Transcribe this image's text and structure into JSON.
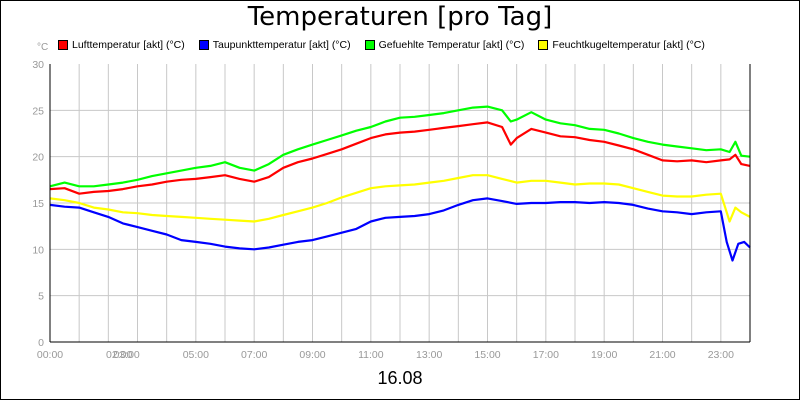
{
  "title": "Temperaturen [pro Tag]",
  "unit_label": "°C",
  "date_label": "16.08",
  "chart_data": {
    "type": "line",
    "title": "Temperaturen [pro Tag]",
    "xlabel": "16.08",
    "ylabel": "°C",
    "x_range": [
      0,
      24
    ],
    "ylim": [
      0,
      30
    ],
    "y_ticks": [
      0,
      5,
      10,
      15,
      20,
      25,
      30
    ],
    "x_tick_labels": [
      {
        "x": 0,
        "label": "00:00"
      },
      {
        "x": 2,
        "label": "02:00"
      },
      {
        "x": 3,
        "label": "03:00"
      },
      {
        "x": 5,
        "label": "05:00"
      },
      {
        "x": 7,
        "label": "07:00"
      },
      {
        "x": 9,
        "label": "09:00"
      },
      {
        "x": 11,
        "label": "11:00"
      },
      {
        "x": 13,
        "label": "13:00"
      },
      {
        "x": 15,
        "label": "15:00"
      },
      {
        "x": 17,
        "label": "17:00"
      },
      {
        "x": 19,
        "label": "19:00"
      },
      {
        "x": 21,
        "label": "21:00"
      },
      {
        "x": 23,
        "label": "23:00"
      }
    ],
    "grid": true,
    "legend_position": "top",
    "series": [
      {
        "name": "Lufttemperatur [akt] (°C)",
        "color": "#ff0000",
        "x": [
          0,
          0.5,
          1,
          1.5,
          2,
          2.5,
          3,
          3.5,
          4,
          4.5,
          5,
          5.5,
          6,
          6.5,
          7,
          7.5,
          8,
          8.5,
          9,
          9.5,
          10,
          10.5,
          11,
          11.5,
          12,
          12.5,
          13,
          13.5,
          14,
          14.5,
          15,
          15.5,
          15.8,
          16,
          16.5,
          17,
          17.5,
          18,
          18.5,
          19,
          19.5,
          20,
          20.5,
          21,
          21.5,
          22,
          22.5,
          23,
          23.3,
          23.5,
          23.7,
          24
        ],
        "y": [
          16.5,
          16.6,
          16.0,
          16.2,
          16.3,
          16.5,
          16.8,
          17.0,
          17.3,
          17.5,
          17.6,
          17.8,
          18.0,
          17.6,
          17.3,
          17.8,
          18.8,
          19.4,
          19.8,
          20.3,
          20.8,
          21.4,
          22.0,
          22.4,
          22.6,
          22.7,
          22.9,
          23.1,
          23.3,
          23.5,
          23.7,
          23.2,
          21.3,
          22.0,
          23.0,
          22.6,
          22.2,
          22.1,
          21.8,
          21.6,
          21.2,
          20.8,
          20.2,
          19.6,
          19.5,
          19.6,
          19.4,
          19.6,
          19.7,
          20.2,
          19.2,
          19.0
        ]
      },
      {
        "name": "Taupunkttemperatur [akt] (°C)",
        "color": "#0000ff",
        "x": [
          0,
          0.5,
          1,
          1.5,
          2,
          2.5,
          3,
          3.5,
          4,
          4.5,
          5,
          5.5,
          6,
          6.5,
          7,
          7.5,
          8,
          8.5,
          9,
          9.5,
          10,
          10.5,
          11,
          11.5,
          12,
          12.5,
          13,
          13.5,
          14,
          14.5,
          15,
          15.5,
          16,
          16.5,
          17,
          17.5,
          18,
          18.5,
          19,
          19.5,
          20,
          20.5,
          21,
          21.5,
          22,
          22.5,
          23,
          23.2,
          23.4,
          23.6,
          23.8,
          24
        ],
        "y": [
          14.8,
          14.6,
          14.5,
          14.0,
          13.5,
          12.8,
          12.4,
          12.0,
          11.6,
          11.0,
          10.8,
          10.6,
          10.3,
          10.1,
          10.0,
          10.2,
          10.5,
          10.8,
          11.0,
          11.4,
          11.8,
          12.2,
          13.0,
          13.4,
          13.5,
          13.6,
          13.8,
          14.2,
          14.8,
          15.3,
          15.5,
          15.2,
          14.9,
          15.0,
          15.0,
          15.1,
          15.1,
          15.0,
          15.1,
          15.0,
          14.8,
          14.4,
          14.1,
          14.0,
          13.8,
          14.0,
          14.1,
          10.8,
          8.8,
          10.6,
          10.8,
          10.2
        ]
      },
      {
        "name": "Gefuehlte Temperatur [akt] (°C)",
        "color": "#00ff00",
        "x": [
          0,
          0.5,
          1,
          1.5,
          2,
          2.5,
          3,
          3.5,
          4,
          4.5,
          5,
          5.5,
          6,
          6.5,
          7,
          7.5,
          8,
          8.5,
          9,
          9.5,
          10,
          10.5,
          11,
          11.5,
          12,
          12.5,
          13,
          13.5,
          14,
          14.5,
          15,
          15.5,
          15.8,
          16,
          16.5,
          17,
          17.5,
          18,
          18.5,
          19,
          19.5,
          20,
          20.5,
          21,
          21.5,
          22,
          22.5,
          23,
          23.3,
          23.5,
          23.7,
          24
        ],
        "y": [
          16.8,
          17.2,
          16.8,
          16.8,
          17.0,
          17.2,
          17.5,
          17.9,
          18.2,
          18.5,
          18.8,
          19.0,
          19.4,
          18.8,
          18.5,
          19.2,
          20.2,
          20.8,
          21.3,
          21.8,
          22.3,
          22.8,
          23.2,
          23.8,
          24.2,
          24.3,
          24.5,
          24.7,
          25.0,
          25.3,
          25.4,
          25.0,
          23.8,
          24.0,
          24.8,
          24.0,
          23.6,
          23.4,
          23.0,
          22.9,
          22.5,
          22.0,
          21.6,
          21.3,
          21.1,
          20.9,
          20.7,
          20.8,
          20.5,
          21.6,
          20.1,
          20.0
        ]
      },
      {
        "name": "Feuchtkugeltemperatur [akt] (°C)",
        "color": "#ffff00",
        "x": [
          0,
          0.5,
          1,
          1.5,
          2,
          2.5,
          3,
          3.5,
          4,
          4.5,
          5,
          5.5,
          6,
          6.5,
          7,
          7.5,
          8,
          8.5,
          9,
          9.5,
          10,
          10.5,
          11,
          11.5,
          12,
          12.5,
          13,
          13.5,
          14,
          14.5,
          15,
          15.5,
          16,
          16.5,
          17,
          17.5,
          18,
          18.5,
          19,
          19.5,
          20,
          20.5,
          21,
          21.5,
          22,
          22.5,
          23,
          23.3,
          23.5,
          23.7,
          24
        ],
        "y": [
          15.5,
          15.3,
          15.0,
          14.5,
          14.3,
          14.0,
          13.9,
          13.7,
          13.6,
          13.5,
          13.4,
          13.3,
          13.2,
          13.1,
          13.0,
          13.3,
          13.7,
          14.1,
          14.5,
          15.0,
          15.6,
          16.1,
          16.6,
          16.8,
          16.9,
          17.0,
          17.2,
          17.4,
          17.7,
          18.0,
          18.0,
          17.6,
          17.2,
          17.4,
          17.4,
          17.2,
          17.0,
          17.1,
          17.1,
          17.0,
          16.6,
          16.2,
          15.8,
          15.7,
          15.7,
          15.9,
          16.0,
          13.0,
          14.5,
          14.0,
          13.5
        ]
      }
    ]
  }
}
